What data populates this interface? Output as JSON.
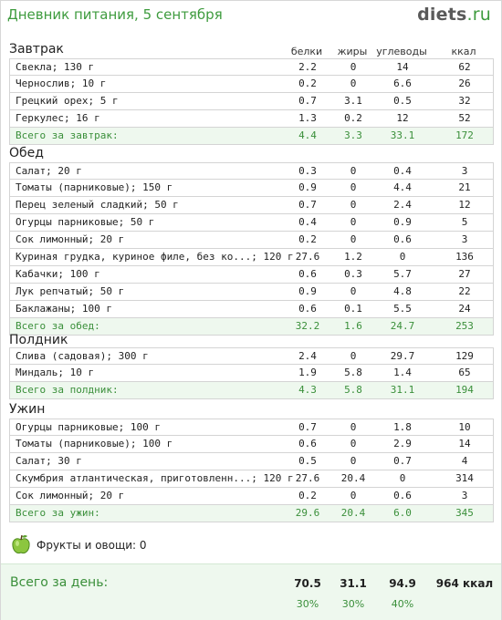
{
  "page": {
    "title": "Дневник питания, 5 сентября",
    "logo_main": "diets",
    "logo_tld": ".ru"
  },
  "columns": {
    "protein": "белки",
    "fat": "жиры",
    "carbs": "углеводы",
    "kcal": "ккал"
  },
  "meals": [
    {
      "name": "Завтрак",
      "items": [
        {
          "name": "Свекла; 130 г",
          "p": "2.2",
          "f": "0",
          "c": "14",
          "k": "62"
        },
        {
          "name": "Чернослив; 10 г",
          "p": "0.2",
          "f": "0",
          "c": "6.6",
          "k": "26"
        },
        {
          "name": "Грецкий орех; 5 г",
          "p": "0.7",
          "f": "3.1",
          "c": "0.5",
          "k": "32"
        },
        {
          "name": "Геркулес; 16 г",
          "p": "1.3",
          "f": "0.2",
          "c": "12",
          "k": "52"
        }
      ],
      "total": {
        "name": "Всего за завтрак:",
        "p": "4.4",
        "f": "3.3",
        "c": "33.1",
        "k": "172"
      }
    },
    {
      "name": "Обед",
      "items": [
        {
          "name": "Салат; 20 г",
          "p": "0.3",
          "f": "0",
          "c": "0.4",
          "k": "3"
        },
        {
          "name": "Томаты (парниковые); 150 г",
          "p": "0.9",
          "f": "0",
          "c": "4.4",
          "k": "21"
        },
        {
          "name": "Перец зеленый сладкий; 50 г",
          "p": "0.7",
          "f": "0",
          "c": "2.4",
          "k": "12"
        },
        {
          "name": "Огурцы парниковые; 50 г",
          "p": "0.4",
          "f": "0",
          "c": "0.9",
          "k": "5"
        },
        {
          "name": "Сок лимонный; 20 г",
          "p": "0.2",
          "f": "0",
          "c": "0.6",
          "k": "3"
        },
        {
          "name": "Куриная грудка, куриное филе, без ко...; 120 г",
          "p": "27.6",
          "f": "1.2",
          "c": "0",
          "k": "136"
        },
        {
          "name": "Кабачки; 100 г",
          "p": "0.6",
          "f": "0.3",
          "c": "5.7",
          "k": "27"
        },
        {
          "name": "Лук репчатый; 50 г",
          "p": "0.9",
          "f": "0",
          "c": "4.8",
          "k": "22"
        },
        {
          "name": "Баклажаны; 100 г",
          "p": "0.6",
          "f": "0.1",
          "c": "5.5",
          "k": "24"
        }
      ],
      "total": {
        "name": "Всего за обед:",
        "p": "32.2",
        "f": "1.6",
        "c": "24.7",
        "k": "253"
      }
    },
    {
      "name": "Полдник",
      "items": [
        {
          "name": "Слива (садовая); 300 г",
          "p": "2.4",
          "f": "0",
          "c": "29.7",
          "k": "129"
        },
        {
          "name": "Миндаль; 10 г",
          "p": "1.9",
          "f": "5.8",
          "c": "1.4",
          "k": "65"
        }
      ],
      "total": {
        "name": "Всего за полдник:",
        "p": "4.3",
        "f": "5.8",
        "c": "31.1",
        "k": "194"
      }
    },
    {
      "name": "Ужин",
      "items": [
        {
          "name": "Огурцы парниковые; 100 г",
          "p": "0.7",
          "f": "0",
          "c": "1.8",
          "k": "10"
        },
        {
          "name": "Томаты (парниковые); 100 г",
          "p": "0.6",
          "f": "0",
          "c": "2.9",
          "k": "14"
        },
        {
          "name": "Салат; 30 г",
          "p": "0.5",
          "f": "0",
          "c": "0.7",
          "k": "4"
        },
        {
          "name": "Скумбрия атлантическая, приготовленн...; 120 г",
          "p": "27.6",
          "f": "20.4",
          "c": "0",
          "k": "314"
        },
        {
          "name": "Сок лимонный; 20 г",
          "p": "0.2",
          "f": "0",
          "c": "0.6",
          "k": "3"
        }
      ],
      "total": {
        "name": "Всего за ужин:",
        "p": "29.6",
        "f": "20.4",
        "c": "6.0",
        "k": "345"
      }
    }
  ],
  "fruits": {
    "label": "Фрукты и овощи: 0",
    "icon": "apple-icon"
  },
  "day": {
    "label": "Всего за день:",
    "p": "70.5",
    "f": "31.1",
    "c": "94.9",
    "k": "964 ккал",
    "p_pct": "30%",
    "f_pct": "30%",
    "c_pct": "40%"
  },
  "colors": {
    "accent": "#3e9b3e",
    "total_bg": "#eef8ee",
    "border": "#d4d4d4"
  }
}
